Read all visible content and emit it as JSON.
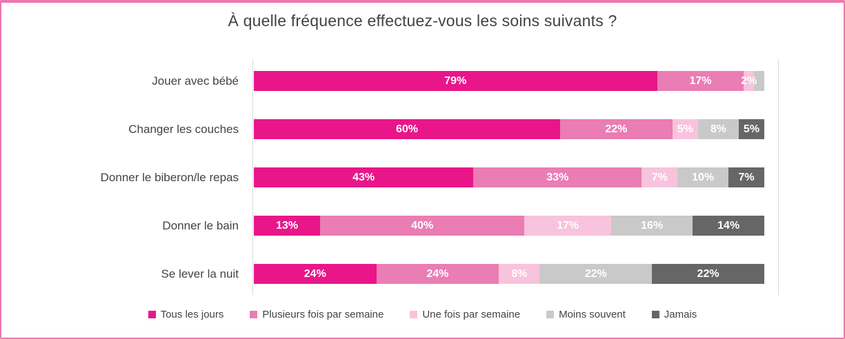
{
  "style": {
    "frame_border_color": "#f075ae",
    "axis_line_color": "#d9d9d9",
    "category_text_color": "#3f4447",
    "bar_value_text_color": "#ffffff"
  },
  "chart_data": {
    "type": "bar",
    "orientation": "horizontal",
    "stacked": true,
    "percent_stacked": true,
    "units": "%",
    "title": "À quelle fréquence effectuez-vous les soins suivants ?",
    "categories": [
      "Jouer avec bébé",
      "Changer les couches",
      "Donner le biberon/le repas",
      "Donner le bain",
      "Se lever la nuit"
    ],
    "series": [
      {
        "name": "Tous les jours",
        "color": "#e9168a",
        "values": [
          79,
          60,
          43,
          13,
          24
        ],
        "labels": [
          "79%",
          "60%",
          "43%",
          "13%",
          "24%"
        ]
      },
      {
        "name": "Plusieurs fois par semaine",
        "color": "#ea7db3",
        "values": [
          17,
          22,
          33,
          40,
          24
        ],
        "labels": [
          "17%",
          "22%",
          "33%",
          "40%",
          "24%"
        ]
      },
      {
        "name": "Une fois par semaine",
        "color": "#f8c3dc",
        "values": [
          2,
          5,
          7,
          17,
          8
        ],
        "labels": [
          "2%",
          "5%",
          "7%",
          "17%",
          "8%"
        ]
      },
      {
        "name": "Moins souvent",
        "color": "#c9c9c9",
        "values": [
          2,
          8,
          10,
          16,
          22
        ],
        "labels": [
          "",
          "8%",
          "10%",
          "16%",
          "22%"
        ]
      },
      {
        "name": "Jamais",
        "color": "#666666",
        "values": [
          0,
          5,
          7,
          14,
          22
        ],
        "labels": [
          "",
          "5%",
          "7%",
          "14%",
          "22%"
        ]
      }
    ],
    "xlim": [
      0,
      100
    ],
    "grid": "off",
    "legend_position": "bottom",
    "legend": [
      "Tous les jours",
      "Plusieurs fois par semaine",
      "Une fois par semaine",
      "Moins souvent",
      "Jamais"
    ]
  }
}
